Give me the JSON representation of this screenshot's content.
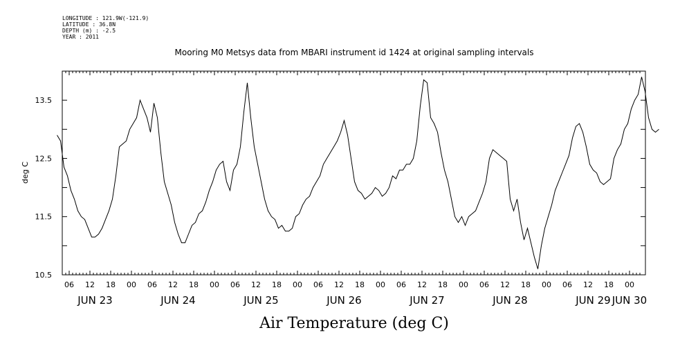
{
  "metadata": {
    "longitude": "LONGITUDE : 121.9W(-121.9)",
    "latitude": "LATITUDE : 36.8N",
    "depth": "DEPTH (m) : -2.5",
    "year": "YEAR : 2011"
  },
  "chart_data": {
    "type": "line",
    "title": "Mooring M0 Metsys data from MBARI instrument id 1424 at original sampling intervals",
    "xlabel": "Air Temperature (deg C)",
    "ylabel": "deg C",
    "ylim": [
      10.5,
      14.0
    ],
    "y_ticks": [
      "10.5",
      "11.5",
      "12.5",
      "13.5"
    ],
    "xlim_hours": [
      2.5,
      171
    ],
    "x_hour_tick_labels": [
      "06",
      "12",
      "18",
      "00",
      "06",
      "12",
      "18",
      "00",
      "06",
      "12",
      "18",
      "00",
      "06",
      "12",
      "18",
      "00",
      "06",
      "12",
      "18",
      "00",
      "06",
      "12",
      "18",
      "00",
      "06",
      "12",
      "18",
      "00"
    ],
    "x_day_labels": [
      "JUN 23",
      "JUN 24",
      "JUN 25",
      "JUN 26",
      "JUN 27",
      "JUN 28",
      "JUN 29",
      "JUN 30"
    ],
    "series": [
      {
        "values": [
          [
            2.5,
            12.9
          ],
          [
            3.5,
            12.8
          ],
          [
            4.5,
            12.35
          ],
          [
            5.5,
            12.2
          ],
          [
            6.5,
            11.95
          ],
          [
            7.5,
            11.8
          ],
          [
            8.5,
            11.6
          ],
          [
            9.5,
            11.5
          ],
          [
            10.5,
            11.45
          ],
          [
            11.5,
            11.3
          ],
          [
            12.5,
            11.15
          ],
          [
            13.5,
            11.15
          ],
          [
            14.5,
            11.2
          ],
          [
            15.5,
            11.3
          ],
          [
            16.5,
            11.45
          ],
          [
            17.5,
            11.6
          ],
          [
            18.5,
            11.8
          ],
          [
            19.5,
            12.2
          ],
          [
            20.5,
            12.7
          ],
          [
            21.5,
            12.75
          ],
          [
            22.5,
            12.8
          ],
          [
            23.5,
            13.0
          ],
          [
            24.5,
            13.1
          ],
          [
            25.5,
            13.2
          ],
          [
            26.5,
            13.5
          ],
          [
            27.5,
            13.35
          ],
          [
            28.5,
            13.2
          ],
          [
            29.5,
            12.95
          ],
          [
            30.5,
            13.45
          ],
          [
            31.5,
            13.2
          ],
          [
            32.5,
            12.6
          ],
          [
            33.5,
            12.1
          ],
          [
            34.5,
            11.9
          ],
          [
            35.5,
            11.7
          ],
          [
            36.5,
            11.4
          ],
          [
            37.5,
            11.2
          ],
          [
            38.5,
            11.05
          ],
          [
            39.5,
            11.05
          ],
          [
            40.5,
            11.2
          ],
          [
            41.5,
            11.35
          ],
          [
            42.5,
            11.4
          ],
          [
            43.5,
            11.55
          ],
          [
            44.5,
            11.6
          ],
          [
            45.5,
            11.75
          ],
          [
            46.5,
            11.95
          ],
          [
            47.5,
            12.1
          ],
          [
            48.5,
            12.3
          ],
          [
            49.5,
            12.4
          ],
          [
            50.5,
            12.45
          ],
          [
            51.5,
            12.1
          ],
          [
            52.5,
            11.95
          ],
          [
            53.5,
            12.3
          ],
          [
            54.5,
            12.4
          ],
          [
            55.5,
            12.7
          ],
          [
            56.5,
            13.3
          ],
          [
            57.5,
            13.8
          ],
          [
            58.5,
            13.2
          ],
          [
            59.5,
            12.7
          ],
          [
            60.5,
            12.4
          ],
          [
            61.5,
            12.1
          ],
          [
            62.5,
            11.8
          ],
          [
            63.5,
            11.6
          ],
          [
            64.5,
            11.5
          ],
          [
            65.5,
            11.45
          ],
          [
            66.5,
            11.3
          ],
          [
            67.5,
            11.35
          ],
          [
            68.5,
            11.25
          ],
          [
            69.5,
            11.25
          ],
          [
            70.5,
            11.3
          ],
          [
            71.5,
            11.5
          ],
          [
            72.5,
            11.55
          ],
          [
            73.5,
            11.7
          ],
          [
            74.5,
            11.8
          ],
          [
            75.5,
            11.85
          ],
          [
            76.5,
            12.0
          ],
          [
            77.5,
            12.1
          ],
          [
            78.5,
            12.2
          ],
          [
            79.5,
            12.4
          ],
          [
            80.5,
            12.5
          ],
          [
            81.5,
            12.6
          ],
          [
            82.5,
            12.7
          ],
          [
            83.5,
            12.8
          ],
          [
            84.5,
            12.95
          ],
          [
            85.5,
            13.15
          ],
          [
            86.5,
            12.9
          ],
          [
            87.5,
            12.5
          ],
          [
            88.5,
            12.1
          ],
          [
            89.5,
            11.95
          ],
          [
            90.5,
            11.9
          ],
          [
            91.5,
            11.8
          ],
          [
            92.5,
            11.85
          ],
          [
            93.5,
            11.9
          ],
          [
            94.5,
            12.0
          ],
          [
            95.5,
            11.95
          ],
          [
            96.5,
            11.85
          ],
          [
            97.5,
            11.9
          ],
          [
            98.5,
            12.0
          ],
          [
            99.5,
            12.2
          ],
          [
            100.5,
            12.15
          ],
          [
            101.5,
            12.3
          ],
          [
            102.5,
            12.3
          ],
          [
            103.5,
            12.4
          ],
          [
            104.5,
            12.4
          ],
          [
            105.5,
            12.5
          ],
          [
            106.5,
            12.8
          ],
          [
            107.5,
            13.4
          ],
          [
            108.5,
            13.85
          ],
          [
            109.5,
            13.8
          ],
          [
            110.5,
            13.2
          ],
          [
            111.5,
            13.1
          ],
          [
            112.5,
            12.95
          ],
          [
            113.5,
            12.6
          ],
          [
            114.5,
            12.3
          ],
          [
            115.5,
            12.1
          ],
          [
            116.5,
            11.8
          ],
          [
            117.5,
            11.5
          ],
          [
            118.5,
            11.4
          ],
          [
            119.5,
            11.5
          ],
          [
            120.5,
            11.35
          ],
          [
            121.5,
            11.5
          ],
          [
            122.5,
            11.55
          ],
          [
            123.5,
            11.6
          ],
          [
            124.5,
            11.75
          ],
          [
            125.5,
            11.9
          ],
          [
            126.5,
            12.1
          ],
          [
            127.5,
            12.5
          ],
          [
            128.5,
            12.65
          ],
          [
            129.5,
            12.6
          ],
          [
            130.5,
            12.55
          ],
          [
            131.5,
            12.5
          ],
          [
            132.5,
            12.45
          ],
          [
            133.5,
            11.8
          ],
          [
            134.5,
            11.6
          ],
          [
            135.5,
            11.8
          ],
          [
            136.5,
            11.4
          ],
          [
            137.5,
            11.1
          ],
          [
            138.5,
            11.3
          ],
          [
            139.5,
            11.05
          ],
          [
            140.5,
            10.8
          ],
          [
            141.5,
            10.6
          ],
          [
            142.5,
            11.0
          ],
          [
            143.5,
            11.3
          ],
          [
            144.5,
            11.5
          ],
          [
            145.5,
            11.7
          ],
          [
            146.5,
            11.95
          ],
          [
            147.5,
            12.1
          ],
          [
            148.5,
            12.25
          ],
          [
            149.5,
            12.4
          ],
          [
            150.5,
            12.55
          ],
          [
            151.5,
            12.85
          ],
          [
            152.5,
            13.05
          ],
          [
            153.5,
            13.1
          ],
          [
            154.5,
            12.95
          ],
          [
            155.5,
            12.7
          ],
          [
            156.5,
            12.4
          ],
          [
            157.5,
            12.3
          ],
          [
            158.5,
            12.25
          ],
          [
            159.5,
            12.1
          ],
          [
            160.5,
            12.05
          ],
          [
            161.5,
            12.1
          ],
          [
            162.5,
            12.15
          ],
          [
            163.5,
            12.5
          ],
          [
            164.5,
            12.65
          ],
          [
            165.5,
            12.75
          ],
          [
            166.5,
            13.0
          ],
          [
            167.5,
            13.1
          ],
          [
            168.5,
            13.35
          ],
          [
            169.5,
            13.5
          ],
          [
            170.5,
            13.6
          ],
          [
            171.5,
            13.9
          ],
          [
            172.5,
            13.65
          ],
          [
            173.5,
            13.2
          ],
          [
            174.5,
            13.0
          ],
          [
            175.5,
            12.95
          ],
          [
            176.5,
            13.0
          ]
        ]
      }
    ]
  }
}
